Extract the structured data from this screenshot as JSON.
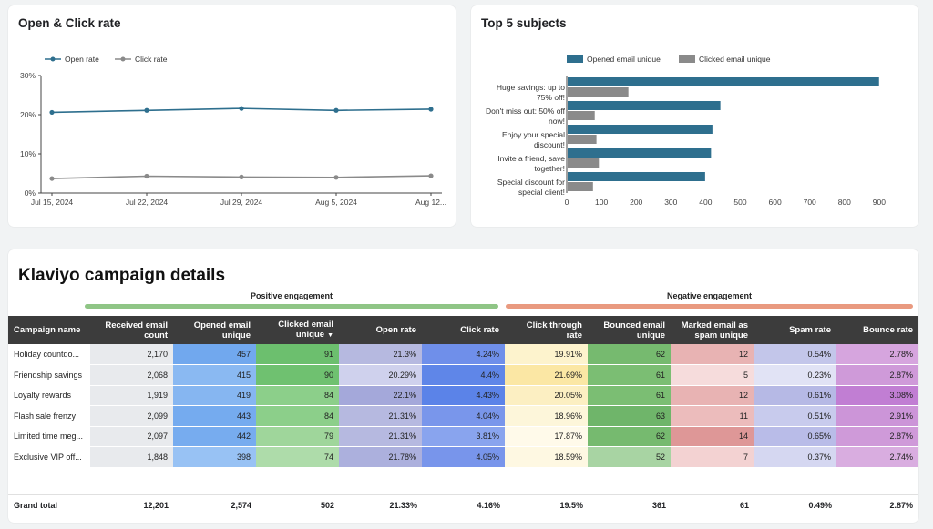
{
  "rate_chart": {
    "title": "Open & Click rate",
    "legend": [
      "Open rate",
      "Click rate"
    ],
    "y_ticks": [
      "30%",
      "20%",
      "10%",
      "0%"
    ],
    "x_ticks": [
      "Jul 15, 2024",
      "Jul 22, 2024",
      "Jul 29, 2024",
      "Aug 5, 2024",
      "Aug 12..."
    ],
    "colors": {
      "open": "#2e6f8e",
      "click": "#8a8a8a"
    }
  },
  "subjects_chart": {
    "title": "Top 5 subjects",
    "legend": [
      "Opened email unique",
      "Clicked email unique"
    ],
    "x_ticks": [
      "0",
      "100",
      "200",
      "300",
      "400",
      "500",
      "600",
      "700",
      "800",
      "900"
    ],
    "labels": [
      [
        "Huge savings: up to",
        "75% off!"
      ],
      [
        "Don't miss out: 50% off",
        "now!"
      ],
      [
        "Enjoy your special",
        "discount!"
      ],
      [
        "Invite a friend, save",
        "together!"
      ],
      [
        "Special discount for",
        "special client!"
      ]
    ],
    "colors": {
      "opened": "#2e6f8e",
      "clicked": "#8a8a8a"
    }
  },
  "chart_data": [
    {
      "type": "line",
      "title": "Open & Click rate",
      "x": [
        "Jul 15, 2024",
        "Jul 22, 2024",
        "Jul 29, 2024",
        "Aug 5, 2024",
        "Aug 12, 2024"
      ],
      "series": [
        {
          "name": "Open rate",
          "values": [
            20.6,
            21.1,
            21.6,
            21.1,
            21.4
          ]
        },
        {
          "name": "Click rate",
          "values": [
            3.7,
            4.3,
            4.1,
            4.0,
            4.4
          ]
        }
      ],
      "ylim": [
        0,
        30
      ],
      "ylabel": "%"
    },
    {
      "type": "bar",
      "orientation": "horizontal",
      "title": "Top 5 subjects",
      "categories": [
        "Huge savings: up to 75% off!",
        "Don't miss out: 50% off now!",
        "Enjoy your special discount!",
        "Invite a friend, save together!",
        "Special discount for special client!"
      ],
      "series": [
        {
          "name": "Opened email unique",
          "values": [
            897,
            440,
            417,
            413,
            396
          ]
        },
        {
          "name": "Clicked email unique",
          "values": [
            175,
            78,
            83,
            90,
            73
          ]
        }
      ],
      "xlim": [
        0,
        950
      ]
    }
  ],
  "table": {
    "title": "Klaviyo campaign details",
    "group_positive": "Positive engagement",
    "group_negative": "Negative engagement",
    "group_colors": {
      "positive": "#8fc586",
      "negative": "#e99a80"
    },
    "headers": {
      "name": "Campaign name",
      "received": "Received email count",
      "opened": "Opened email unique",
      "clicked": "Clicked email unique",
      "open_rate": "Open rate",
      "click_rate": "Click rate",
      "ctr": "Click through rate",
      "bounced": "Bounced email unique",
      "spam_unique": "Marked email as spam unique",
      "spam_rate": "Spam rate",
      "bounce_rate": "Bounce rate"
    },
    "rows": [
      {
        "name": "Holiday countdo...",
        "received": "2,170",
        "opened": "457",
        "clicked": "91",
        "open_rate": "21.3%",
        "click_rate": "4.24%",
        "ctr": "19.91%",
        "bounced": "62",
        "spam_unique": "12",
        "spam_rate": "0.54%",
        "bounce_rate": "2.78%"
      },
      {
        "name": "Friendship savings",
        "received": "2,068",
        "opened": "415",
        "clicked": "90",
        "open_rate": "20.29%",
        "click_rate": "4.4%",
        "ctr": "21.69%",
        "bounced": "61",
        "spam_unique": "5",
        "spam_rate": "0.23%",
        "bounce_rate": "2.87%"
      },
      {
        "name": "Loyalty rewards",
        "received": "1,919",
        "opened": "419",
        "clicked": "84",
        "open_rate": "22.1%",
        "click_rate": "4.43%",
        "ctr": "20.05%",
        "bounced": "61",
        "spam_unique": "12",
        "spam_rate": "0.61%",
        "bounce_rate": "3.08%"
      },
      {
        "name": "Flash sale frenzy",
        "received": "2,099",
        "opened": "443",
        "clicked": "84",
        "open_rate": "21.31%",
        "click_rate": "4.04%",
        "ctr": "18.96%",
        "bounced": "63",
        "spam_unique": "11",
        "spam_rate": "0.51%",
        "bounce_rate": "2.91%"
      },
      {
        "name": "Limited time meg...",
        "received": "2,097",
        "opened": "442",
        "clicked": "79",
        "open_rate": "21.31%",
        "click_rate": "3.81%",
        "ctr": "17.87%",
        "bounced": "62",
        "spam_unique": "14",
        "spam_rate": "0.65%",
        "bounce_rate": "2.87%"
      },
      {
        "name": "Exclusive VIP off...",
        "received": "1,848",
        "opened": "398",
        "clicked": "74",
        "open_rate": "21.78%",
        "click_rate": "4.05%",
        "ctr": "18.59%",
        "bounced": "52",
        "spam_unique": "7",
        "spam_rate": "0.37%",
        "bounce_rate": "2.74%"
      }
    ],
    "cell_colors": [
      [
        "#e8eaed",
        "#71a8ee",
        "#6cbf6e",
        "#b6b9e0",
        "#6f8fea",
        "#fdf3cd",
        "#76ba6f",
        "#e8b3b3",
        "#c3c6ea",
        "#d6a5de"
      ],
      [
        "#e8eaed",
        "#8ab9f2",
        "#6fc170",
        "#cfd1ed",
        "#5f86e8",
        "#fbe7a4",
        "#7bbe73",
        "#f6dcdc",
        "#e1e3f5",
        "#cf9ad9"
      ],
      [
        "#e8eaed",
        "#86b6f1",
        "#8ccf8a",
        "#a4a8da",
        "#5b83e8",
        "#fcefc2",
        "#7bbe73",
        "#e8b3b3",
        "#b6b9e5",
        "#c17ed3"
      ],
      [
        "#e8eaed",
        "#75abef",
        "#8ccf8a",
        "#b6b9e0",
        "#7996eb",
        "#fdf6da",
        "#6fb56a",
        "#ecbcbc",
        "#c8cbed",
        "#cc95d8"
      ],
      [
        "#e8eaed",
        "#77acef",
        "#9fd69b",
        "#b6b9e0",
        "#89a4ee",
        "#fffaea",
        "#76ba6f",
        "#de9797",
        "#b9bce8",
        "#cf9ad9"
      ],
      [
        "#e8eaed",
        "#98c2f4",
        "#aedcaa",
        "#acb0dd",
        "#7895eb",
        "#fef8e2",
        "#a8d4a3",
        "#f3d2d2",
        "#d5d7f1",
        "#d9ade0"
      ]
    ],
    "totals": {
      "label": "Grand total",
      "received": "12,201",
      "opened": "2,574",
      "clicked": "502",
      "open_rate": "21.33%",
      "click_rate": "4.16%",
      "ctr": "19.5%",
      "bounced": "361",
      "spam_unique": "61",
      "spam_rate": "0.49%",
      "bounce_rate": "2.87%"
    }
  }
}
